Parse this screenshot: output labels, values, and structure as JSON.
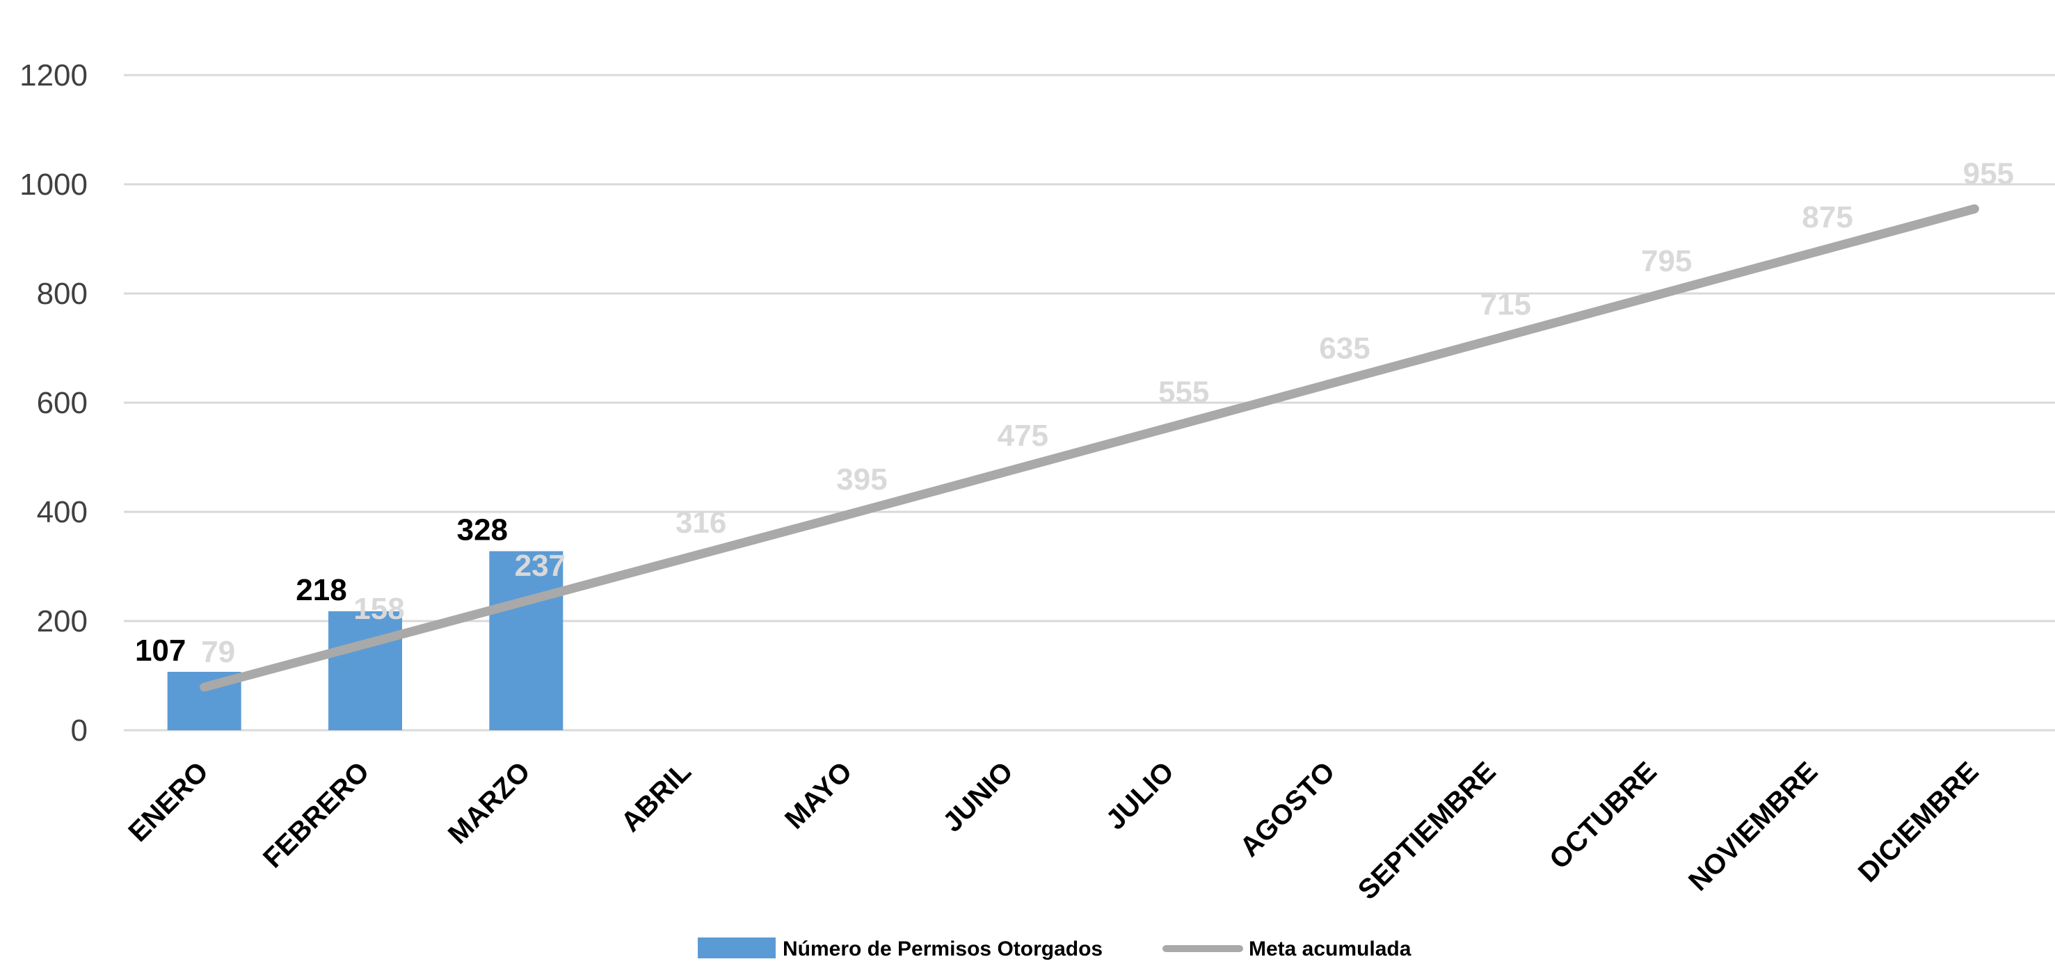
{
  "chart_data": {
    "type": "bar",
    "categories": [
      "ENERO",
      "FEBRERO",
      "MARZO",
      "ABRIL",
      "MAYO",
      "JUNIO",
      "JULIO",
      "AGOSTO",
      "SEPTIEMBRE",
      "OCTUBRE",
      "NOVIEMBRE",
      "DICIEMBRE"
    ],
    "series": [
      {
        "name": "Número de Permisos Otorgados",
        "type": "bar",
        "color": "#5b9bd5",
        "values": [
          107,
          218,
          328,
          null,
          null,
          null,
          null,
          null,
          null,
          null,
          null,
          null
        ],
        "data_labels": [
          "107",
          "218",
          "328"
        ]
      },
      {
        "name": "Meta acumulada",
        "type": "line",
        "color": "#a9a9a9",
        "values": [
          79,
          158,
          237,
          316,
          395,
          475,
          555,
          635,
          715,
          795,
          875,
          955
        ],
        "data_labels": [
          "79",
          "158",
          "237",
          "316",
          "395",
          "475",
          "555",
          "635",
          "715",
          "795",
          "875",
          "955"
        ]
      }
    ],
    "ylim": [
      0,
      1200
    ],
    "yticks": [
      "0",
      "200",
      "400",
      "600",
      "800",
      "1000",
      "1200"
    ],
    "grid": true,
    "legend_position": "bottom",
    "title": "",
    "xlabel": "",
    "ylabel": ""
  }
}
